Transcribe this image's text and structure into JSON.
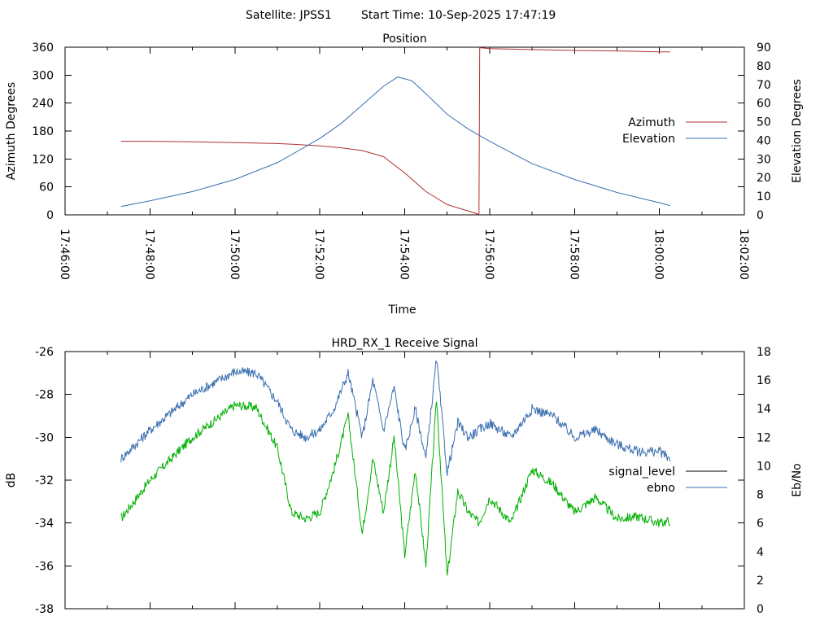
{
  "header": {
    "satellite": "Satellite: JPSS1",
    "start_time": "Start Time: 10-Sep-2025 17:47:19"
  },
  "colors": {
    "azimuth": "#b03030",
    "elevation": "#3a6fb0",
    "signal_level": "#00b000",
    "ebno": "#3a6fb0",
    "legend_signal_level": "#000000",
    "axes": "#000000",
    "background": "#ffffff"
  },
  "chart_data": [
    {
      "type": "line",
      "title": "Position",
      "xlabel": "Time",
      "ylabel": "Azimuth Degrees",
      "y2label": "Elevation Degrees",
      "xlim": [
        "17:46:00",
        "18:02:00"
      ],
      "xticks": [
        "17:46:00",
        "17:48:00",
        "17:50:00",
        "17:52:00",
        "17:54:00",
        "17:56:00",
        "17:58:00",
        "18:00:00",
        "18:02:00"
      ],
      "ylim": [
        0,
        360
      ],
      "yticks": [
        0,
        60,
        120,
        180,
        240,
        300,
        360
      ],
      "y2lim": [
        0,
        90
      ],
      "y2ticks": [
        0,
        10,
        20,
        30,
        40,
        50,
        60,
        70,
        80,
        90
      ],
      "legend_position": "right",
      "series": [
        {
          "name": "Azimuth",
          "axis": "y",
          "x": [
            "17:47:19",
            "17:48:00",
            "17:49:00",
            "17:50:00",
            "17:51:00",
            "17:51:30",
            "17:52:00",
            "17:52:30",
            "17:53:00",
            "17:53:30",
            "17:54:00",
            "17:54:30",
            "17:55:00",
            "17:55:30",
            "17:55:45",
            "17:55:46",
            "17:56:00",
            "17:57:00",
            "17:58:00",
            "17:59:00",
            "18:00:00",
            "18:00:15"
          ],
          "values": [
            158,
            158,
            157,
            155,
            153,
            151,
            148,
            144,
            138,
            125,
            90,
            50,
            22,
            8,
            1,
            359,
            357,
            355,
            353,
            352,
            350,
            350
          ]
        },
        {
          "name": "Elevation",
          "axis": "y2",
          "x": [
            "17:47:19",
            "17:48:00",
            "17:49:00",
            "17:50:00",
            "17:51:00",
            "17:52:00",
            "17:52:30",
            "17:53:00",
            "17:53:30",
            "17:53:50",
            "17:54:10",
            "17:54:30",
            "17:55:00",
            "17:55:30",
            "17:56:00",
            "17:57:00",
            "17:58:00",
            "17:59:00",
            "18:00:00",
            "18:00:15"
          ],
          "values": [
            4.5,
            7.5,
            12.5,
            19,
            28,
            41,
            49,
            59,
            69,
            74,
            72,
            65,
            54,
            46,
            39.5,
            27.5,
            19,
            12,
            6.5,
            5
          ]
        }
      ]
    },
    {
      "type": "line",
      "title": "HRD_RX_1 Receive Signal",
      "ylabel": "dB",
      "y2label": "Eb/No",
      "xlim": [
        "17:46:00",
        "18:02:00"
      ],
      "ylim": [
        -38,
        -26
      ],
      "yticks": [
        -38,
        -36,
        -34,
        -32,
        -30,
        -28,
        -26
      ],
      "y2lim": [
        0,
        18
      ],
      "y2ticks": [
        0,
        2,
        4,
        6,
        8,
        10,
        12,
        14,
        16,
        18
      ],
      "legend_position": "right",
      "series": [
        {
          "name": "signal_level",
          "axis": "y",
          "x": [
            "17:47:19",
            "17:48:00",
            "17:49:00",
            "17:50:00",
            "17:50:30",
            "17:51:00",
            "17:51:20",
            "17:51:40",
            "17:52:00",
            "17:52:20",
            "17:52:40",
            "17:53:00",
            "17:53:15",
            "17:53:30",
            "17:53:45",
            "17:54:00",
            "17:54:15",
            "17:54:30",
            "17:54:45",
            "17:55:00",
            "17:55:15",
            "17:55:30",
            "17:55:45",
            "17:56:00",
            "17:56:30",
            "17:57:00",
            "17:57:30",
            "17:58:00",
            "17:58:30",
            "17:59:00",
            "17:59:30",
            "18:00:00",
            "18:00:15"
          ],
          "values": [
            -33.8,
            -32.0,
            -30.0,
            -28.5,
            -28.6,
            -30.5,
            -33.5,
            -33.8,
            -33.5,
            -31.5,
            -29.0,
            -34.5,
            -31.0,
            -33.5,
            -30.0,
            -35.5,
            -31.5,
            -36.0,
            -28.2,
            -36.5,
            -32.5,
            -33.5,
            -34.0,
            -32.8,
            -34.0,
            -31.5,
            -32.2,
            -33.5,
            -32.8,
            -33.8,
            -33.7,
            -34.0,
            -33.9
          ]
        },
        {
          "name": "ebno",
          "axis": "y2",
          "x": [
            "17:47:19",
            "17:48:00",
            "17:49:00",
            "17:50:00",
            "17:50:30",
            "17:51:00",
            "17:51:20",
            "17:51:40",
            "17:52:00",
            "17:52:20",
            "17:52:40",
            "17:53:00",
            "17:53:15",
            "17:53:30",
            "17:53:45",
            "17:54:00",
            "17:54:15",
            "17:54:30",
            "17:54:45",
            "17:55:00",
            "17:55:15",
            "17:55:30",
            "17:55:45",
            "17:56:00",
            "17:56:30",
            "17:57:00",
            "17:57:30",
            "17:58:00",
            "17:58:30",
            "17:59:00",
            "17:59:30",
            "18:00:00",
            "18:00:15"
          ],
          "values": [
            10.5,
            12.5,
            15.0,
            16.6,
            16.5,
            14.5,
            12.5,
            12.0,
            12.5,
            14.0,
            16.5,
            12.0,
            16.0,
            12.5,
            15.5,
            11.0,
            14.0,
            10.5,
            17.5,
            9.5,
            13.0,
            12.0,
            12.5,
            13.0,
            12.0,
            14.0,
            13.5,
            12.0,
            12.5,
            11.5,
            11.0,
            11.0,
            10.5
          ]
        }
      ]
    }
  ]
}
